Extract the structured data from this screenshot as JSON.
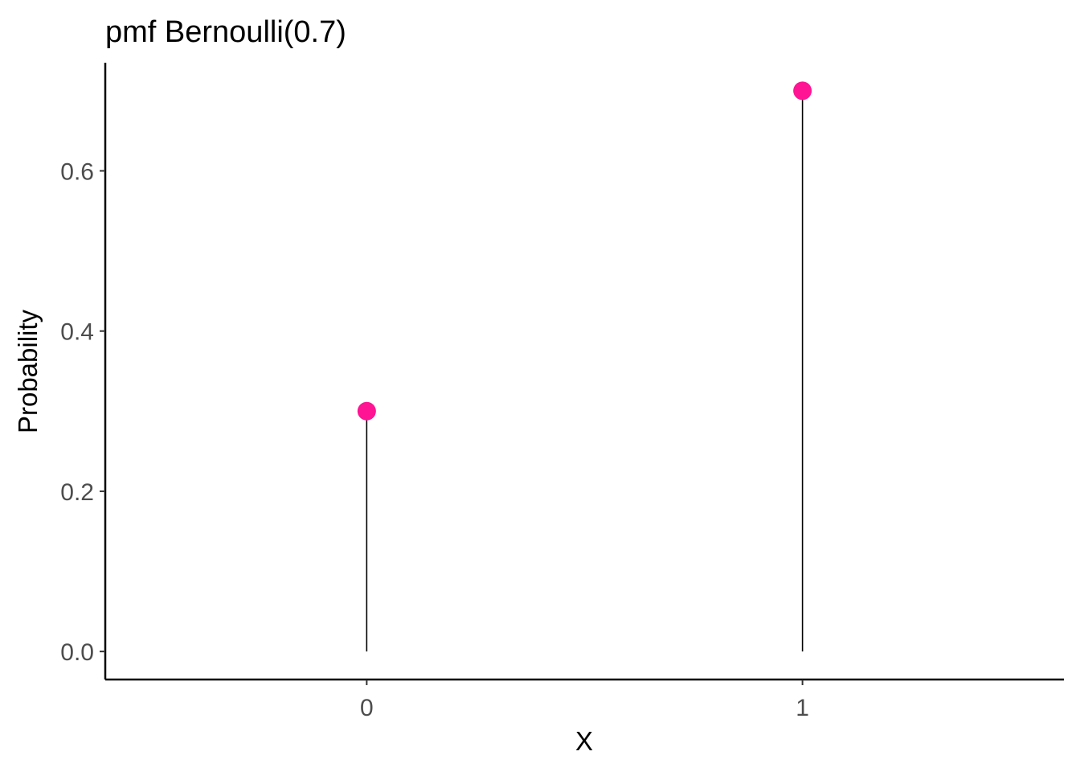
{
  "chart_data": {
    "type": "scatter",
    "title": "pmf Bernoulli(0.7)",
    "xlabel": "X",
    "ylabel": "Probability",
    "x": [
      0,
      1
    ],
    "y": [
      0.3,
      0.7
    ],
    "x_ticks": [
      "0",
      "1"
    ],
    "y_ticks": [
      "0.0",
      "0.2",
      "0.4",
      "0.6"
    ],
    "xlim": [
      -0.6,
      1.6
    ],
    "ylim": [
      -0.035,
      0.735
    ],
    "grid": false,
    "legend": "none",
    "stems": true,
    "colors": {
      "point": "#ff1493",
      "stem": "#000000",
      "axis": "#000000",
      "tick_label": "#4d4d4d"
    }
  }
}
